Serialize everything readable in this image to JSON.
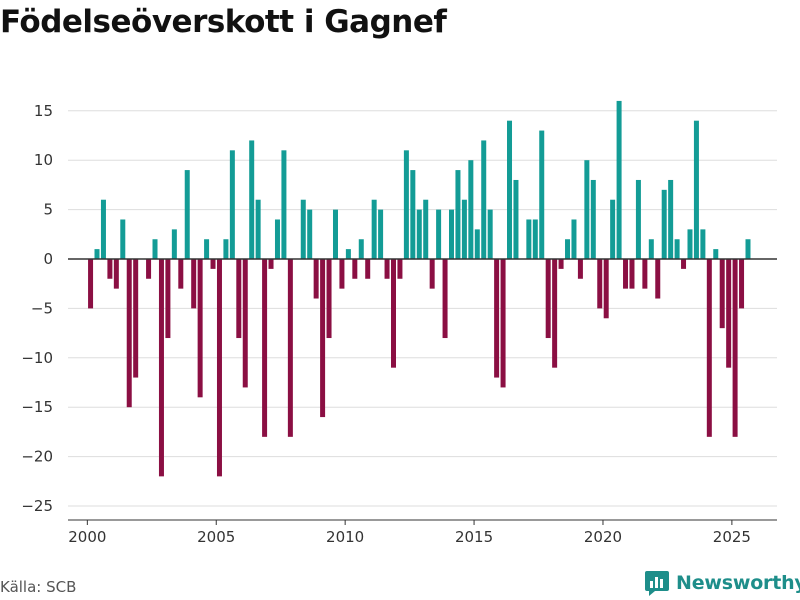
{
  "title": "Födelseöverskott i Gagnef",
  "source": "Källa: SCB",
  "brand": "Newsworthy",
  "colors": {
    "positive": "#139c96",
    "negative": "#8b0f43",
    "grid": "#dddddd",
    "zero": "#333333",
    "brand": "#1e8e8a"
  },
  "chart_data": {
    "type": "bar",
    "title": "Födelseöverskott i Gagnef",
    "xlabel": "",
    "ylabel": "",
    "ylim": [
      -25,
      17
    ],
    "yticks": [
      15,
      10,
      5,
      0,
      -5,
      -10,
      -15,
      -20,
      -25
    ],
    "xticks": [
      2000,
      2005,
      2010,
      2015,
      2020,
      2025
    ],
    "x_range": [
      1999.25,
      2026.75
    ],
    "series": [
      {
        "name": "Födelseöverskott",
        "x": [
          2000.125,
          2000.375,
          2000.625,
          2000.875,
          2001.125,
          2001.375,
          2001.625,
          2001.875,
          2002.125,
          2002.375,
          2002.625,
          2002.875,
          2003.125,
          2003.375,
          2003.625,
          2003.875,
          2004.125,
          2004.375,
          2004.625,
          2004.875,
          2005.125,
          2005.375,
          2005.625,
          2005.875,
          2006.125,
          2006.375,
          2006.625,
          2006.875,
          2007.125,
          2007.375,
          2007.625,
          2007.875,
          2008.125,
          2008.375,
          2008.625,
          2008.875,
          2009.125,
          2009.375,
          2009.625,
          2009.875,
          2010.125,
          2010.375,
          2010.625,
          2010.875,
          2011.125,
          2011.375,
          2011.625,
          2011.875,
          2012.125,
          2012.375,
          2012.625,
          2012.875,
          2013.125,
          2013.375,
          2013.625,
          2013.875,
          2014.125,
          2014.375,
          2014.625,
          2014.875,
          2015.125,
          2015.375,
          2015.625,
          2015.875,
          2016.125,
          2016.375,
          2016.625,
          2016.875,
          2017.125,
          2017.375,
          2017.625,
          2017.875,
          2018.125,
          2018.375,
          2018.625,
          2018.875,
          2019.125,
          2019.375,
          2019.625,
          2019.875,
          2020.125,
          2020.375,
          2020.625,
          2020.875,
          2021.125,
          2021.375,
          2021.625,
          2021.875,
          2022.125,
          2022.375,
          2022.625,
          2022.875,
          2023.125,
          2023.375,
          2023.625,
          2023.875,
          2024.125,
          2024.375,
          2024.625,
          2024.875,
          2025.125,
          2025.375,
          2025.625
        ],
        "values": [
          -5,
          1,
          6,
          -2,
          -3,
          4,
          -15,
          -12,
          0,
          -2,
          2,
          -22,
          -8,
          3,
          -3,
          9,
          -5,
          -14,
          2,
          -1,
          -22,
          2,
          11,
          -8,
          -13,
          12,
          6,
          -18,
          -1,
          4,
          11,
          -18,
          0,
          6,
          5,
          -4,
          -16,
          -8,
          5,
          -3,
          1,
          -2,
          2,
          -2,
          6,
          5,
          -2,
          -11,
          -2,
          11,
          9,
          5,
          6,
          -3,
          5,
          -8,
          5,
          9,
          6,
          10,
          3,
          12,
          5,
          -12,
          -13,
          14,
          8,
          0,
          4,
          4,
          13,
          -8,
          -11,
          -1,
          2,
          4,
          -2,
          10,
          8,
          -5,
          -6,
          6,
          16,
          -3,
          -3,
          8,
          -3,
          2,
          -4,
          7,
          8,
          2,
          -1,
          3,
          14,
          3,
          -18,
          1,
          -7,
          -11,
          -18,
          -5,
          2
        ]
      }
    ]
  }
}
